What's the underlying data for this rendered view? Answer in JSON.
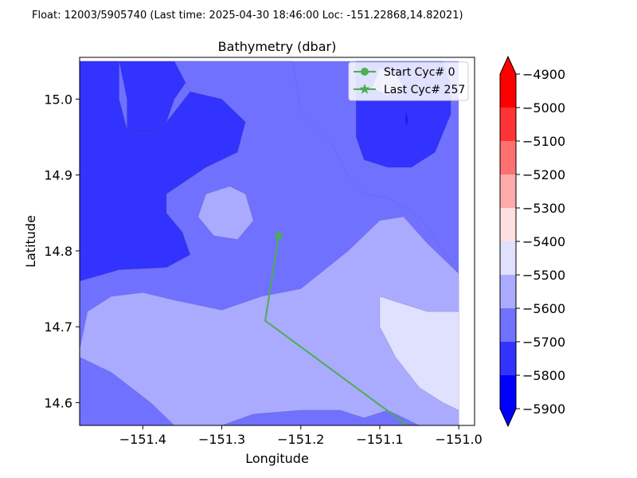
{
  "header": {
    "suptitle": "Float: 12003/5905740 (Last time: 2025-04-30 18:46:00   Loc: -151.22868,14.82021)"
  },
  "chart_data": {
    "type": "contour",
    "title": "Bathymetry (dbar)",
    "xlabel": "Longitude",
    "ylabel": "Latitude",
    "xlim": [
      -151.48,
      -150.98
    ],
    "ylim": [
      14.57,
      15.055
    ],
    "x_ticks": [
      -151.4,
      -151.3,
      -151.2,
      -151.1,
      -151.0
    ],
    "x_tick_labels": [
      "−151.4",
      "−151.3",
      "−151.2",
      "−151.1",
      "−151.0"
    ],
    "y_ticks": [
      14.6,
      14.7,
      14.8,
      14.9,
      15.0
    ],
    "y_tick_labels": [
      "14.6",
      "14.7",
      "14.8",
      "14.9",
      "15.0"
    ],
    "grid": false,
    "legend_position": "top-right",
    "legend": [
      {
        "label": "Start Cyc# 0",
        "marker": "circle",
        "color": "#4caf50"
      },
      {
        "label": "Last Cyc# 257",
        "marker": "star",
        "color": "#4caf50"
      }
    ],
    "trajectory": {
      "color": "#4caf50",
      "lon": [
        -151.065,
        -151.245,
        -151.228
      ],
      "lat": [
        14.57,
        14.708,
        14.82
      ]
    },
    "contour_regions": [
      {
        "level": "-5800",
        "color": "#3333ff",
        "points": [
          [
            -151.48,
            15.05
          ],
          [
            -151.33,
            15.05
          ],
          [
            -151.34,
            15.03
          ],
          [
            -151.36,
            15.0
          ],
          [
            -151.37,
            14.97
          ],
          [
            -151.39,
            14.955
          ],
          [
            -151.41,
            14.955
          ],
          [
            -151.42,
            14.96
          ],
          [
            -151.42,
            15.0
          ],
          [
            -151.43,
            15.05
          ]
        ]
      },
      {
        "level": "-5800",
        "color": "#3333ff",
        "points": [
          [
            -151.48,
            15.05
          ],
          [
            -151.43,
            15.05
          ],
          [
            -151.43,
            15.0
          ],
          [
            -151.42,
            14.96
          ],
          [
            -151.41,
            14.955
          ],
          [
            -151.39,
            14.955
          ],
          [
            -151.37,
            14.97
          ],
          [
            -151.34,
            15.01
          ],
          [
            -151.3,
            15.0
          ],
          [
            -151.27,
            14.97
          ],
          [
            -151.28,
            14.93
          ],
          [
            -151.32,
            14.91
          ],
          [
            -151.37,
            14.875
          ],
          [
            -151.37,
            14.85
          ],
          [
            -151.35,
            14.825
          ],
          [
            -151.34,
            14.795
          ],
          [
            -151.37,
            14.778
          ],
          [
            -151.43,
            14.775
          ],
          [
            -151.48,
            14.76
          ]
        ]
      },
      {
        "level": "-5800",
        "color": "#3333ff",
        "points": [
          [
            -151.13,
            15.05
          ],
          [
            -151.02,
            15.05
          ],
          [
            -151.01,
            15.02
          ],
          [
            -151.01,
            14.98
          ],
          [
            -151.03,
            14.93
          ],
          [
            -151.06,
            14.91
          ],
          [
            -151.09,
            14.91
          ],
          [
            -151.12,
            14.92
          ],
          [
            -151.13,
            14.95
          ],
          [
            -151.13,
            15.0
          ]
        ]
      },
      {
        "level": "-5700",
        "color": "#7171ff",
        "points": [
          [
            -151.36,
            15.05
          ],
          [
            -151.21,
            15.05
          ],
          [
            -151.2,
            14.98
          ],
          [
            -151.16,
            14.94
          ],
          [
            -151.14,
            14.9
          ],
          [
            -151.12,
            14.875
          ],
          [
            -151.09,
            14.87
          ],
          [
            -151.05,
            14.845
          ],
          [
            -151.02,
            14.8
          ],
          [
            -151.0,
            14.77
          ],
          [
            -151.0,
            14.57
          ],
          [
            -151.48,
            14.57
          ],
          [
            -151.48,
            14.76
          ],
          [
            -151.43,
            14.775
          ],
          [
            -151.37,
            14.778
          ],
          [
            -151.34,
            14.795
          ],
          [
            -151.35,
            14.825
          ],
          [
            -151.37,
            14.85
          ],
          [
            -151.37,
            14.875
          ],
          [
            -151.32,
            14.91
          ],
          [
            -151.28,
            14.93
          ],
          [
            -151.27,
            14.97
          ],
          [
            -151.3,
            15.0
          ],
          [
            -151.34,
            15.01
          ]
        ]
      },
      {
        "level": "-5600",
        "color": "#aaaaff",
        "points": [
          [
            -151.48,
            14.57
          ],
          [
            -151.48,
            14.67
          ],
          [
            -151.47,
            14.72
          ],
          [
            -151.44,
            14.74
          ],
          [
            -151.4,
            14.745
          ],
          [
            -151.36,
            14.735
          ],
          [
            -151.3,
            14.722
          ],
          [
            -151.25,
            14.74
          ],
          [
            -151.2,
            14.75
          ],
          [
            -151.14,
            14.8
          ],
          [
            -151.1,
            14.84
          ],
          [
            -151.07,
            14.845
          ],
          [
            -151.04,
            14.81
          ],
          [
            -151.0,
            14.77
          ],
          [
            -151.0,
            14.57
          ]
        ]
      },
      {
        "level": "-5600",
        "color": "#aaaaff",
        "points": [
          [
            -151.32,
            14.875
          ],
          [
            -151.29,
            14.885
          ],
          [
            -151.27,
            14.875
          ],
          [
            -151.26,
            14.84
          ],
          [
            -151.28,
            14.815
          ],
          [
            -151.31,
            14.82
          ],
          [
            -151.33,
            14.845
          ]
        ]
      },
      {
        "level": "-5600",
        "color": "#aaaaff",
        "points": [
          [
            -151.1,
            15.04
          ],
          [
            -151.08,
            15.035
          ],
          [
            -151.07,
            15.015
          ],
          [
            -151.09,
            15.005
          ],
          [
            -151.11,
            15.015
          ]
        ]
      },
      {
        "level": "-5700",
        "color": "#7171ff",
        "points": [
          [
            -151.48,
            14.57
          ],
          [
            -151.48,
            14.66
          ],
          [
            -151.44,
            14.64
          ],
          [
            -151.39,
            14.6
          ],
          [
            -151.36,
            14.57
          ]
        ]
      },
      {
        "level": "-5700",
        "color": "#7171ff",
        "points": [
          [
            -151.3,
            14.57
          ],
          [
            -151.26,
            14.585
          ],
          [
            -151.2,
            14.59
          ],
          [
            -151.15,
            14.59
          ],
          [
            -151.12,
            14.58
          ],
          [
            -151.09,
            14.59
          ],
          [
            -151.06,
            14.575
          ],
          [
            -151.05,
            14.57
          ]
        ]
      },
      {
        "level": "-5500",
        "color": "#e0e0ff",
        "points": [
          [
            -151.07,
            14.73
          ],
          [
            -151.04,
            14.72
          ],
          [
            -151.0,
            14.72
          ],
          [
            -151.0,
            14.59
          ],
          [
            -151.02,
            14.6
          ],
          [
            -151.05,
            14.62
          ],
          [
            -151.08,
            14.66
          ],
          [
            -151.1,
            14.7
          ],
          [
            -151.1,
            14.74
          ]
        ]
      },
      {
        "level": "-5900",
        "color": "#1a1aff",
        "points": [
          [
            -151.066,
            14.985
          ],
          [
            -151.064,
            14.97
          ],
          [
            -151.067,
            14.965
          ],
          [
            -151.068,
            14.975
          ]
        ]
      }
    ],
    "colorbar": {
      "levels": [
        "−4900",
        "−5000",
        "−5100",
        "−5200",
        "−5300",
        "−5400",
        "−5500",
        "−5600",
        "−5700",
        "−5800",
        "−5900"
      ],
      "colors": [
        "#ff0000",
        "#ff3333",
        "#ff7171",
        "#ffaaaa",
        "#ffe0e0",
        "#e0e0ff",
        "#aaaaff",
        "#7171ff",
        "#3333ff",
        "#0000ff"
      ],
      "extend_colors": {
        "over": "#ff0000",
        "under": "#0000ff"
      }
    }
  }
}
